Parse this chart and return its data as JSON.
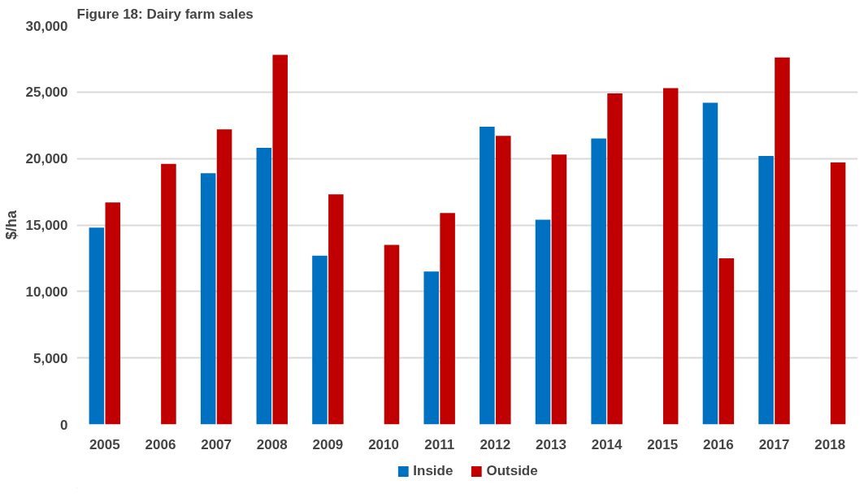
{
  "chart_data": {
    "type": "bar",
    "title": "Figure 18: Dairy farm sales",
    "ylabel": "$/ha",
    "categories": [
      "2005",
      "2006",
      "2007",
      "2008",
      "2009",
      "2010",
      "2011",
      "2012",
      "2013",
      "2014",
      "2015",
      "2016",
      "2017",
      "2018"
    ],
    "series": [
      {
        "name": "Inside",
        "color": "#0070c0",
        "values": [
          14800,
          null,
          18900,
          20800,
          12700,
          null,
          11500,
          22400,
          15400,
          21500,
          null,
          24200,
          20200,
          null
        ]
      },
      {
        "name": "Outside",
        "color": "#c00000",
        "values": [
          16700,
          19600,
          22200,
          27800,
          17300,
          13500,
          15900,
          21700,
          20300,
          24900,
          25300,
          12500,
          27600,
          19700
        ]
      }
    ],
    "ylim": [
      0,
      30000
    ],
    "yticks": [
      {
        "value": 0,
        "label": "0"
      },
      {
        "value": 5000,
        "label": "5,000"
      },
      {
        "value": 10000,
        "label": "10,000"
      },
      {
        "value": 15000,
        "label": "15,000"
      },
      {
        "value": 20000,
        "label": "20,000"
      },
      {
        "value": 25000,
        "label": "25,000"
      },
      {
        "value": 30000,
        "label": "30,000"
      }
    ],
    "grid": "y",
    "legend": "bottom"
  }
}
